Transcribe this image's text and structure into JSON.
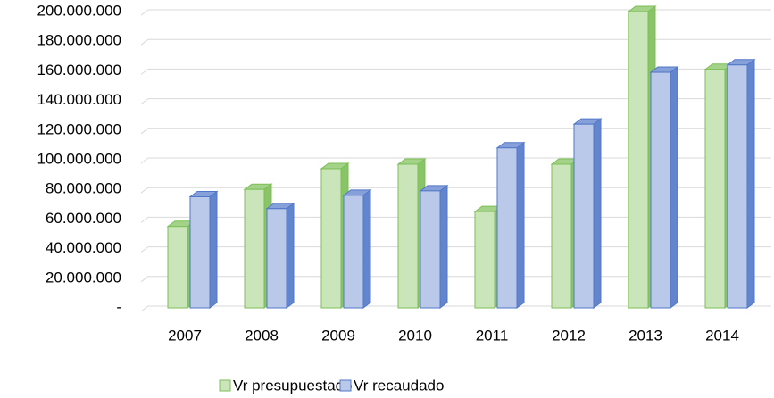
{
  "chart_data": {
    "type": "bar3d",
    "categories": [
      "2007",
      "2008",
      "2009",
      "2010",
      "2011",
      "2012",
      "2013",
      "2014"
    ],
    "series": [
      {
        "name": "Vr presupuestado",
        "color": "#7cbf55",
        "values": [
          55000000,
          80000000,
          94000000,
          97000000,
          65000000,
          97000000,
          200000000,
          161000000
        ]
      },
      {
        "name": "Vr recaudado",
        "color": "#5277c8",
        "values": [
          75000000,
          67000000,
          76000000,
          79000000,
          108000000,
          124000000,
          159000000,
          164000000
        ]
      }
    ],
    "ylim": [
      0,
      200000000
    ],
    "yticks": [
      {
        "value": 0,
        "label": "-"
      },
      {
        "value": 20000000,
        "label": "20.000.000"
      },
      {
        "value": 40000000,
        "label": "40.000.000"
      },
      {
        "value": 60000000,
        "label": "60.000.000"
      },
      {
        "value": 80000000,
        "label": "80.000.000"
      },
      {
        "value": 100000000,
        "label": "100.000.000"
      },
      {
        "value": 120000000,
        "label": "120.000.000"
      },
      {
        "value": 140000000,
        "label": "140.000.000"
      },
      {
        "value": 160000000,
        "label": "160.000.000"
      },
      {
        "value": 180000000,
        "label": "180.000.000"
      },
      {
        "value": 200000000,
        "label": "200.000.000"
      }
    ],
    "grid": true,
    "legend": "bottom"
  }
}
